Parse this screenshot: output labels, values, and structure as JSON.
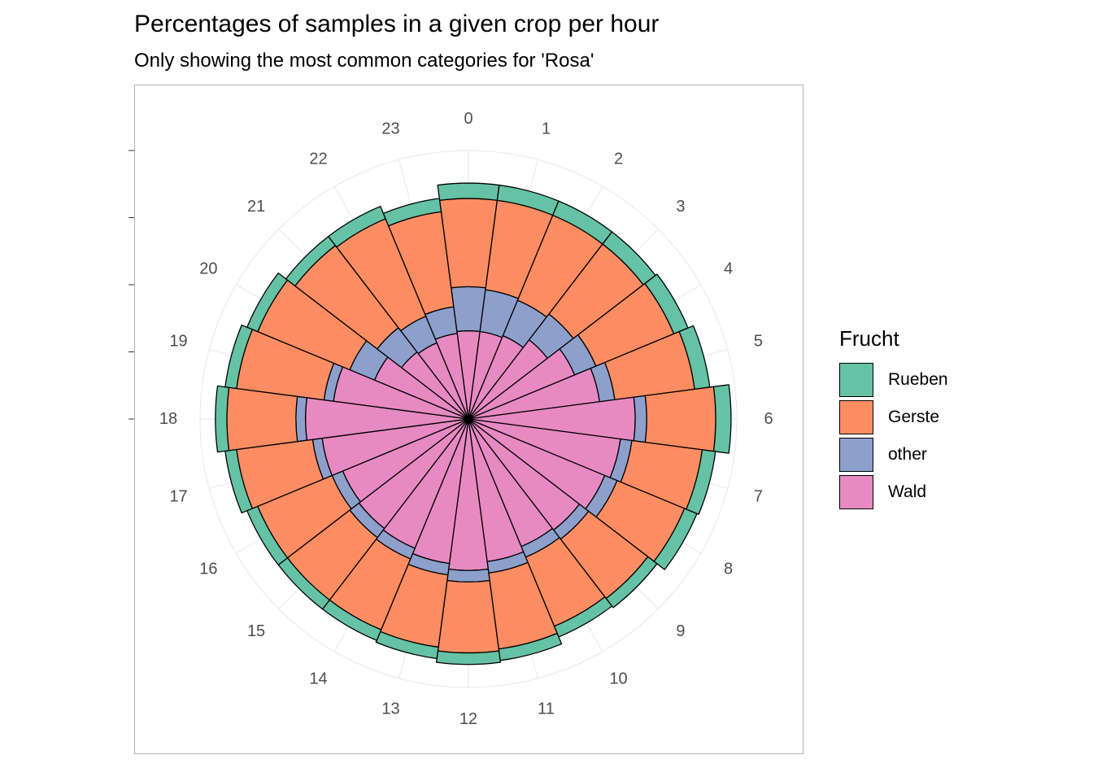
{
  "title": "Percentages of samples in a given crop per hour",
  "subtitle": "Only showing the most common categories for 'Rosa'",
  "legend": {
    "title": "Frucht",
    "items": [
      {
        "label": "Rueben",
        "color": "#66c2a5"
      },
      {
        "label": "Gerste",
        "color": "#fc8d62"
      },
      {
        "label": "other",
        "color": "#8da0cb"
      },
      {
        "label": "Wald",
        "color": "#e78ac3"
      }
    ]
  },
  "chart_data": {
    "type": "bar",
    "coordinates": "polar",
    "categories": [
      "0",
      "1",
      "2",
      "3",
      "4",
      "5",
      "6",
      "7",
      "8",
      "9",
      "10",
      "11",
      "12",
      "13",
      "14",
      "15",
      "16",
      "17",
      "18",
      "19",
      "20",
      "21",
      "22",
      "23"
    ],
    "series": [
      {
        "name": "Wald",
        "color": "#e78ac3",
        "values": [
          46,
          46,
          47,
          52,
          60,
          69,
          87,
          80,
          77,
          73,
          72,
          75,
          79,
          76,
          73,
          72,
          71,
          77,
          85,
          71,
          53,
          44,
          43,
          45
        ]
      },
      {
        "name": "other",
        "color": "#8da0cb",
        "values": [
          23,
          22,
          20,
          17,
          12,
          8,
          6,
          6,
          7,
          6,
          6,
          6,
          6,
          6,
          6,
          6,
          6,
          5,
          5,
          5,
          14,
          16,
          15,
          14
        ]
      },
      {
        "name": "Gerste",
        "color": "#fc8d62",
        "values": [
          46,
          47,
          48,
          46,
          44,
          42,
          36,
          37,
          38,
          39,
          39,
          40,
          37,
          38,
          40,
          41,
          42,
          40,
          36,
          46,
          52,
          54,
          55,
          50
        ]
      },
      {
        "name": "Rueben",
        "color": "#66c2a5",
        "values": [
          8,
          8,
          8,
          8,
          8,
          8,
          8,
          7,
          7,
          6,
          6,
          6,
          6,
          6,
          6,
          6,
          6,
          6,
          6,
          6,
          6,
          6,
          7,
          7
        ]
      }
    ],
    "stack_order_from_center": [
      "Wald",
      "other",
      "Gerste",
      "Rueben"
    ],
    "ylim": [
      0,
      140
    ],
    "grid": true
  }
}
